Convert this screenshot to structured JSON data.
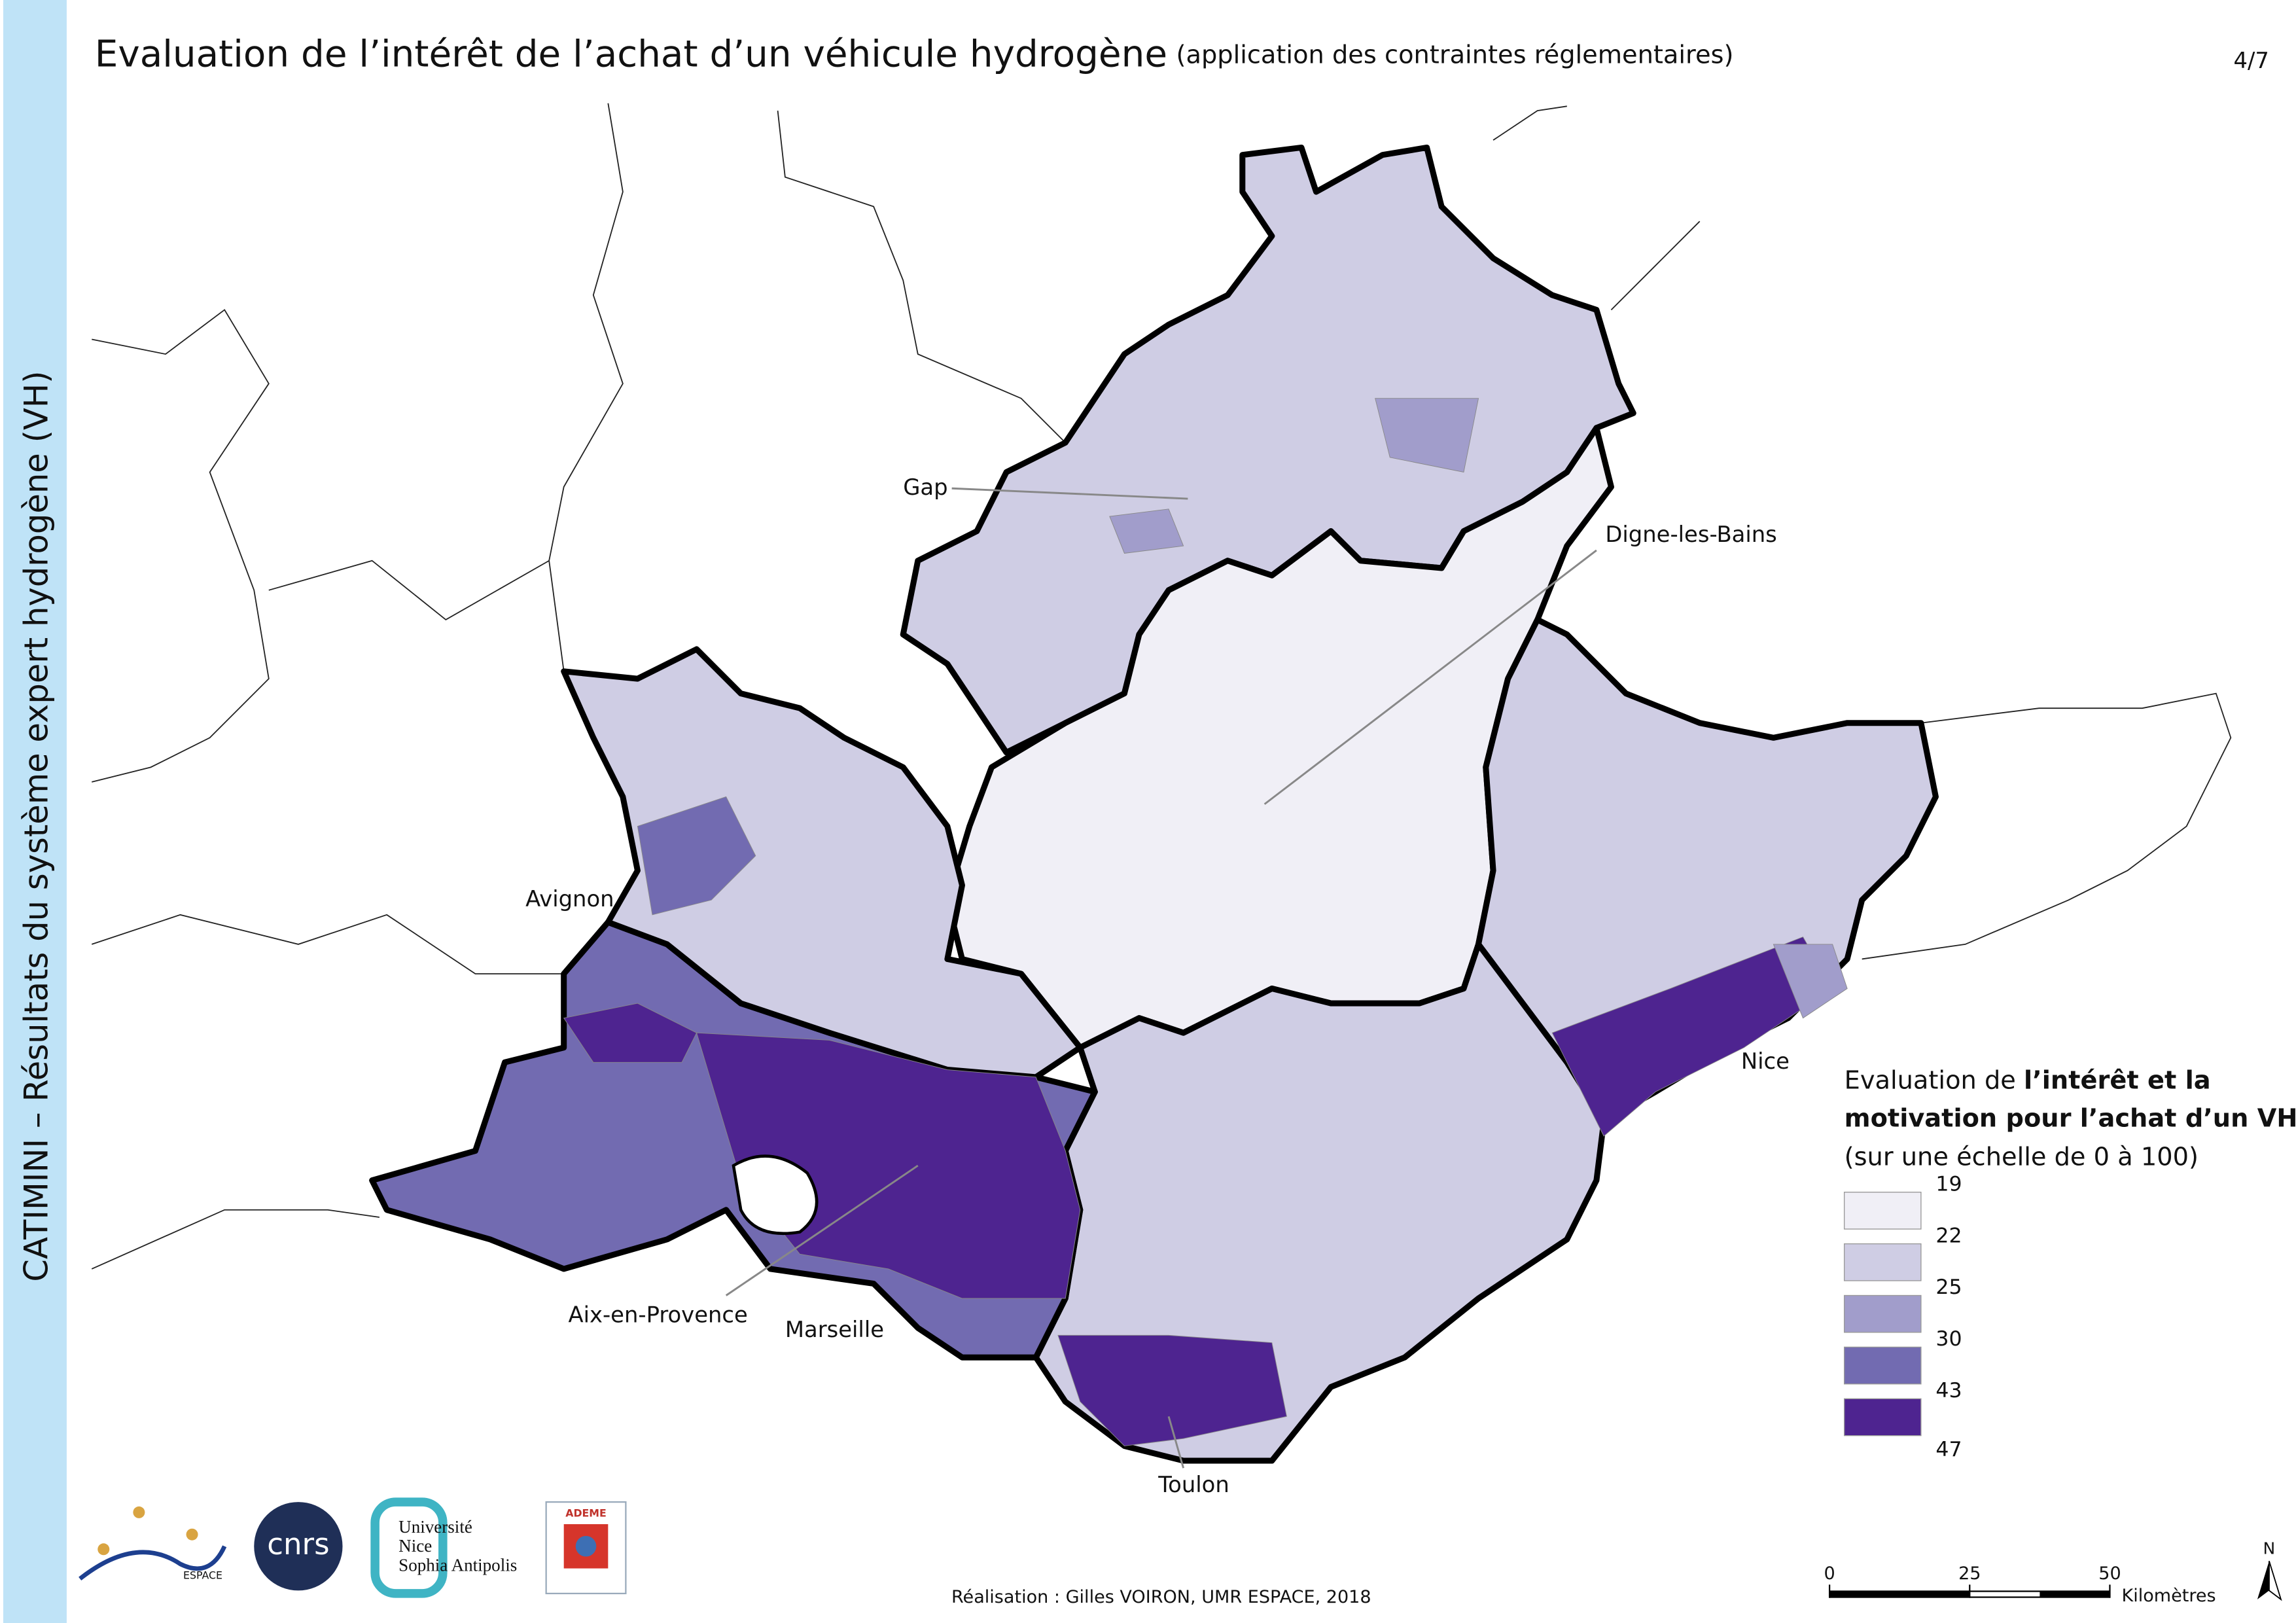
{
  "header": {
    "title": "Evaluation de l’intérêt de l’achat d’un véhicule hydrogène",
    "subtitle": "(application des contraintes réglementaires)",
    "page": "4/7"
  },
  "sidebar": "CATIMINI – Résultats du système expert hydrogène (VH)",
  "cities": [
    "Gap",
    "Digne-les-Bains",
    "Avignon",
    "Nice",
    "Aix-en-Provence",
    "Marseille",
    "Toulon"
  ],
  "legend": {
    "title": [
      "Evaluation de ",
      "l’intérêt et la",
      "motivation pour l’achat d’un VH",
      "(sur une échelle de 0 à 100)"
    ],
    "breaks": [
      19,
      22,
      25,
      30,
      43,
      47
    ],
    "colors": [
      "#f0eff6",
      "#cfcde4",
      "#a19dcb",
      "#726bb1",
      "#4e2490"
    ]
  },
  "scale": {
    "ticks": [
      0,
      25,
      50
    ],
    "unit": "Kilomètres"
  },
  "north": "N",
  "credit": "Réalisation : Gilles VOIRON, UMR ESPACE, 2018",
  "logos": {
    "espace": "ESPACE",
    "cnrs": "cnrs",
    "university": [
      "Université",
      "Nice",
      "Sophia Antipolis"
    ],
    "ademe": "ADEME"
  }
}
